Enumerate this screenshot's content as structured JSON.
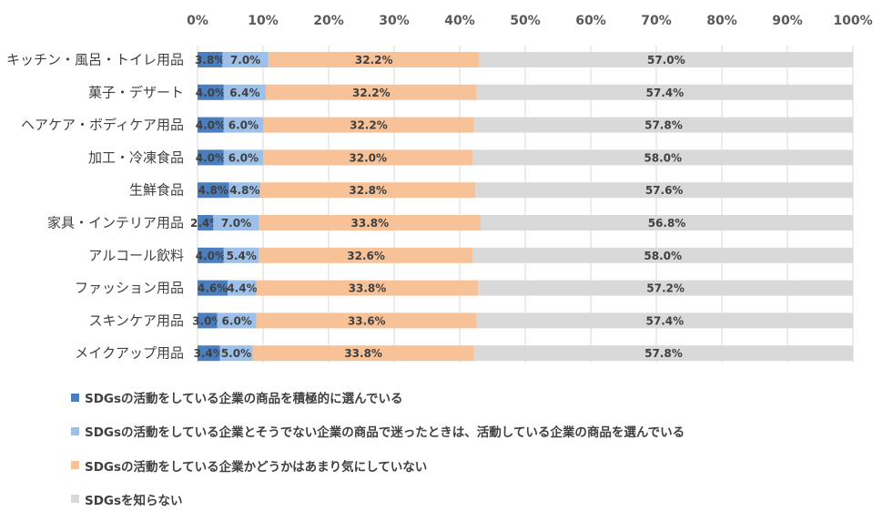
{
  "chart_data": {
    "type": "bar",
    "orientation": "horizontal",
    "stacked": true,
    "percent_stacked": true,
    "categories": [
      "キッチン・風呂・トイレ用品",
      "菓子・デザート",
      "ヘアケア・ボディケア用品",
      "加工・冷凍食品",
      "生鮮食品",
      "家具・インテリア用品",
      "アルコール飲料",
      "ファッション用品",
      "スキンケア用品",
      "メイクアップ用品"
    ],
    "series": [
      {
        "name": "SDGsの活動をしている企業の商品を積極的に選んでいる",
        "color": "#4a7ebf",
        "values": [
          3.8,
          4.0,
          4.0,
          4.0,
          4.8,
          2.4,
          4.0,
          4.6,
          3.0,
          3.4
        ],
        "labels": [
          "3.8%",
          "4.0%",
          "4.0%",
          "4.0%",
          "4.8%",
          "2.4%",
          "4.0%",
          "4.6%",
          "3.0%",
          "3.4%"
        ]
      },
      {
        "name": "SDGsの活動をしている企業とそうでない企業の商品で迷ったときは、活動している企業の商品を選んでいる",
        "color": "#9cc0e8",
        "values": [
          7.0,
          6.4,
          6.0,
          6.0,
          4.8,
          7.0,
          5.4,
          4.4,
          6.0,
          5.0
        ],
        "labels": [
          "7.0%",
          "6.4%",
          "6.0%",
          "6.0%",
          "4.8%",
          "7.0%",
          "5.4%",
          "4.4%",
          "6.0%",
          "5.0%"
        ]
      },
      {
        "name": "SDGsの活動をしている企業かどうかはあまり気にしていない",
        "color": "#f8c298",
        "values": [
          32.2,
          32.2,
          32.2,
          32.0,
          32.8,
          33.8,
          32.6,
          33.8,
          33.6,
          33.8
        ],
        "labels": [
          "32.2%",
          "32.2%",
          "32.2%",
          "32.0%",
          "32.8%",
          "33.8%",
          "32.6%",
          "33.8%",
          "33.6%",
          "33.8%"
        ]
      },
      {
        "name": "SDGsを知らない",
        "color": "#d9d9d9",
        "values": [
          57.0,
          57.4,
          57.8,
          58.0,
          57.6,
          56.8,
          58.0,
          57.2,
          57.4,
          57.8
        ],
        "labels": [
          "57.0%",
          "57.4%",
          "57.8%",
          "58.0%",
          "57.6%",
          "56.8%",
          "58.0%",
          "57.2%",
          "57.4%",
          "57.8%"
        ]
      }
    ],
    "xlim": [
      0,
      100
    ],
    "xticks": [
      "0%",
      "10%",
      "20%",
      "30%",
      "40%",
      "50%",
      "60%",
      "70%",
      "80%",
      "90%",
      "100%"
    ],
    "grid": "vertical",
    "axis_position": "top",
    "legend_position": "bottom-left"
  }
}
